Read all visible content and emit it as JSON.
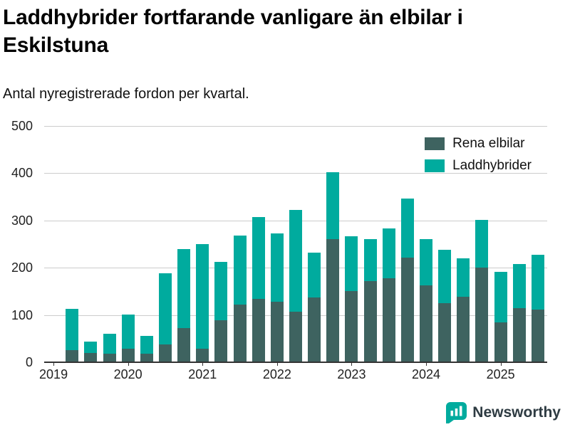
{
  "footer": {
    "brand": "Newsworthy",
    "brand_color": "#00ab9e"
  },
  "chart_data": {
    "type": "bar",
    "stacked": true,
    "title": "Laddhybrider fortfarande vanligare än elbilar i Eskilstuna",
    "subtitle": "Antal nyregistrerade fordon per kvartal.",
    "xlabel": "",
    "ylabel": "",
    "ylim": [
      0,
      500
    ],
    "yticks": [
      0,
      100,
      200,
      300,
      400,
      500
    ],
    "grid": "horizontal",
    "legend_position": "top-right-inside",
    "x_slot_offset": 1,
    "x_slots_per_year": 4,
    "xticklabels": [
      "2019",
      "2020",
      "2021",
      "2022",
      "2023",
      "2024",
      "2025"
    ],
    "categories": [
      "2019 Q2",
      "2019 Q3",
      "2019 Q4",
      "2020 Q1",
      "2020 Q2",
      "2020 Q3",
      "2020 Q4",
      "2021 Q1",
      "2021 Q2",
      "2021 Q3",
      "2021 Q4",
      "2022 Q1",
      "2022 Q2",
      "2022 Q3",
      "2022 Q4",
      "2023 Q1",
      "2023 Q2",
      "2023 Q3",
      "2023 Q4",
      "2024 Q1",
      "2024 Q2",
      "2024 Q3",
      "2024 Q4",
      "2025 Q1",
      "2025 Q2",
      "2025 Q3"
    ],
    "series": [
      {
        "name": "Rena elbilar",
        "color": "#3e6360",
        "values": [
          25,
          20,
          18,
          28,
          18,
          38,
          73,
          28,
          89,
          122,
          134,
          128,
          107,
          137,
          260,
          151,
          172,
          177,
          221,
          162,
          125,
          139,
          200,
          85,
          114,
          111
        ]
      },
      {
        "name": "Laddhybrider",
        "color": "#00ab9e",
        "values": [
          88,
          23,
          42,
          73,
          38,
          150,
          167,
          222,
          124,
          146,
          174,
          144,
          215,
          95,
          142,
          115,
          89,
          106,
          126,
          99,
          113,
          81,
          101,
          106,
          94,
          117
        ]
      }
    ]
  }
}
